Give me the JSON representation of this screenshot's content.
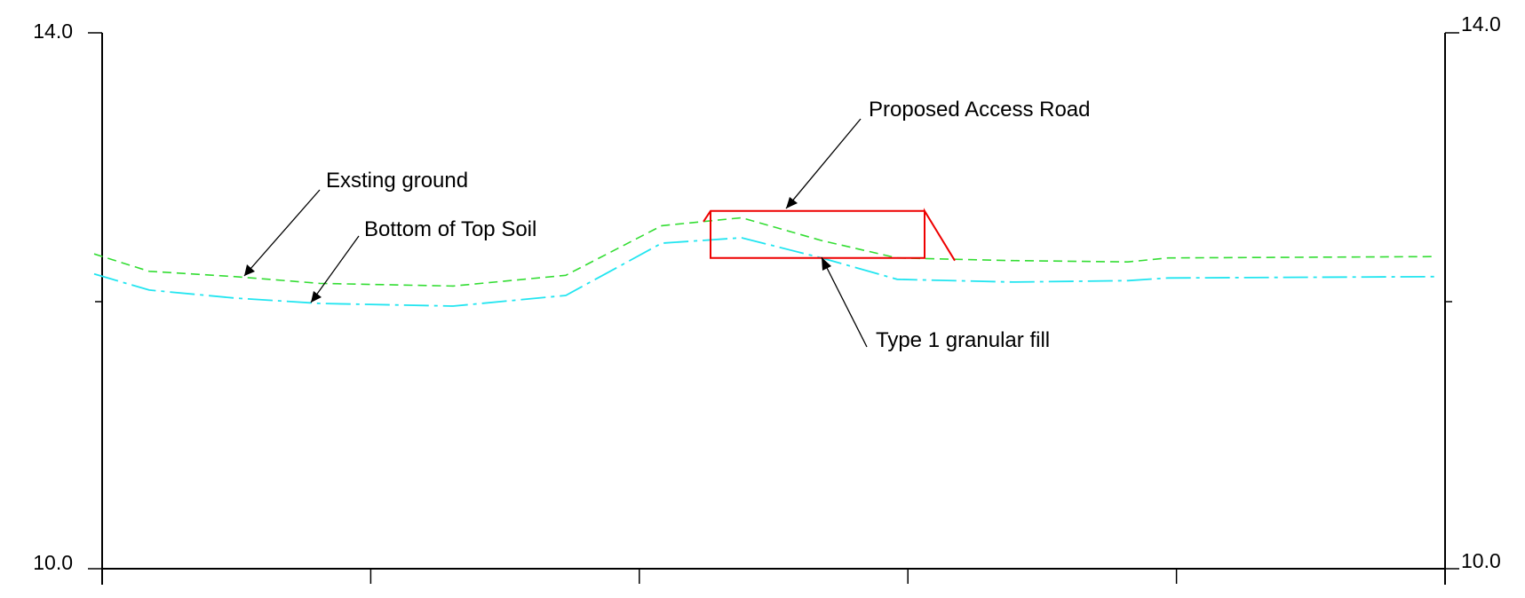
{
  "diagram": {
    "y_axis": {
      "min": 10.0,
      "max": 14.0,
      "left_top_label": "14.0",
      "left_bottom_label": "10.0",
      "right_top_label": "14.0",
      "right_bottom_label": "10.0"
    },
    "x_axis": {
      "tick_count": 6
    },
    "profiles": [
      {
        "id": "existing-ground",
        "line_style": "dashed",
        "color": "#33dd33",
        "elevations": [
          12.35,
          12.22,
          12.18,
          12.13,
          12.11,
          12.19,
          12.56,
          12.62,
          12.45,
          12.32,
          12.3,
          12.29,
          12.32,
          12.33
        ]
      },
      {
        "id": "bottom-of-top-soil",
        "line_style": "dash-dot",
        "color": "#22e5f0",
        "elevations": [
          12.2,
          12.08,
          12.02,
          11.98,
          11.96,
          12.04,
          12.43,
          12.47,
          12.32,
          12.16,
          12.14,
          12.15,
          12.17,
          12.18
        ]
      }
    ],
    "access_road": {
      "color": "#ee0000",
      "top_elevation": 12.67,
      "bottom_elevation": 12.32
    },
    "annotations": [
      {
        "id": "exsting-ground-note",
        "text": "Exsting ground"
      },
      {
        "id": "bottom-of-top-soil-note",
        "text": "Bottom of Top Soil"
      },
      {
        "id": "proposed-access-road-note",
        "text": "Proposed Access Road"
      },
      {
        "id": "type-1-granular-fill-note",
        "text": "Type 1 granular fill"
      }
    ]
  }
}
